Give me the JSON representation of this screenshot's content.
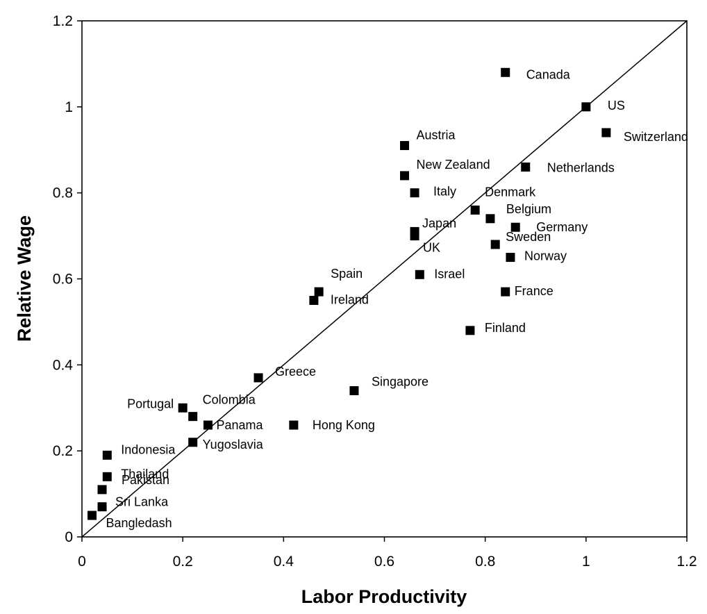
{
  "chart_data": {
    "type": "scatter",
    "title": "",
    "xlabel": "Labor Productivity",
    "ylabel": "Relative Wage",
    "xlim": [
      0,
      1.2
    ],
    "ylim": [
      0,
      1.2
    ],
    "xticks": [
      "0",
      "0.2",
      "0.4",
      "0.6",
      "0.8",
      "1",
      "1.2"
    ],
    "yticks": [
      "0",
      "0.2",
      "0.4",
      "0.6",
      "0.8",
      "1",
      "1.2"
    ],
    "grid": false,
    "reference_line": {
      "from": [
        0,
        0
      ],
      "to": [
        1.2,
        1.2
      ]
    },
    "marker_color": "#000000",
    "points": [
      {
        "label": "Canada",
        "x": 0.84,
        "y": 1.08
      },
      {
        "label": "US",
        "x": 1.0,
        "y": 1.0
      },
      {
        "label": "Switzerland",
        "x": 1.04,
        "y": 0.94
      },
      {
        "label": "Austria",
        "x": 0.64,
        "y": 0.91
      },
      {
        "label": "New Zealand",
        "x": 0.64,
        "y": 0.84
      },
      {
        "label": "Netherlands",
        "x": 0.88,
        "y": 0.86
      },
      {
        "label": "Italy",
        "x": 0.66,
        "y": 0.8
      },
      {
        "label": "Denmark",
        "x": 0.78,
        "y": 0.76
      },
      {
        "label": "Belgium",
        "x": 0.81,
        "y": 0.74
      },
      {
        "label": "Germany",
        "x": 0.86,
        "y": 0.72
      },
      {
        "label": "Japan",
        "x": 0.66,
        "y": 0.71
      },
      {
        "label": "UK",
        "x": 0.66,
        "y": 0.7
      },
      {
        "label": "Sweden",
        "x": 0.82,
        "y": 0.68
      },
      {
        "label": "Norway",
        "x": 0.85,
        "y": 0.65
      },
      {
        "label": "Israel",
        "x": 0.67,
        "y": 0.61
      },
      {
        "label": "Spain",
        "x": 0.47,
        "y": 0.57
      },
      {
        "label": "Ireland",
        "x": 0.46,
        "y": 0.55
      },
      {
        "label": "France",
        "x": 0.84,
        "y": 0.57
      },
      {
        "label": "Finland",
        "x": 0.77,
        "y": 0.48
      },
      {
        "label": "Greece",
        "x": 0.35,
        "y": 0.37
      },
      {
        "label": "Singapore",
        "x": 0.54,
        "y": 0.34
      },
      {
        "label": "Portugal",
        "x": 0.2,
        "y": 0.3
      },
      {
        "label": "Colombia",
        "x": 0.22,
        "y": 0.28
      },
      {
        "label": "Panama",
        "x": 0.25,
        "y": 0.26
      },
      {
        "label": "Hong Kong",
        "x": 0.42,
        "y": 0.26
      },
      {
        "label": "Yugoslavia",
        "x": 0.22,
        "y": 0.22
      },
      {
        "label": "Indonesia",
        "x": 0.05,
        "y": 0.19
      },
      {
        "label": "Thailand",
        "x": 0.05,
        "y": 0.14
      },
      {
        "label": "Pakistan",
        "x": 0.04,
        "y": 0.11
      },
      {
        "label": "Sri Lanka",
        "x": 0.04,
        "y": 0.07
      },
      {
        "label": "Bangledash",
        "x": 0.02,
        "y": 0.05
      }
    ]
  }
}
